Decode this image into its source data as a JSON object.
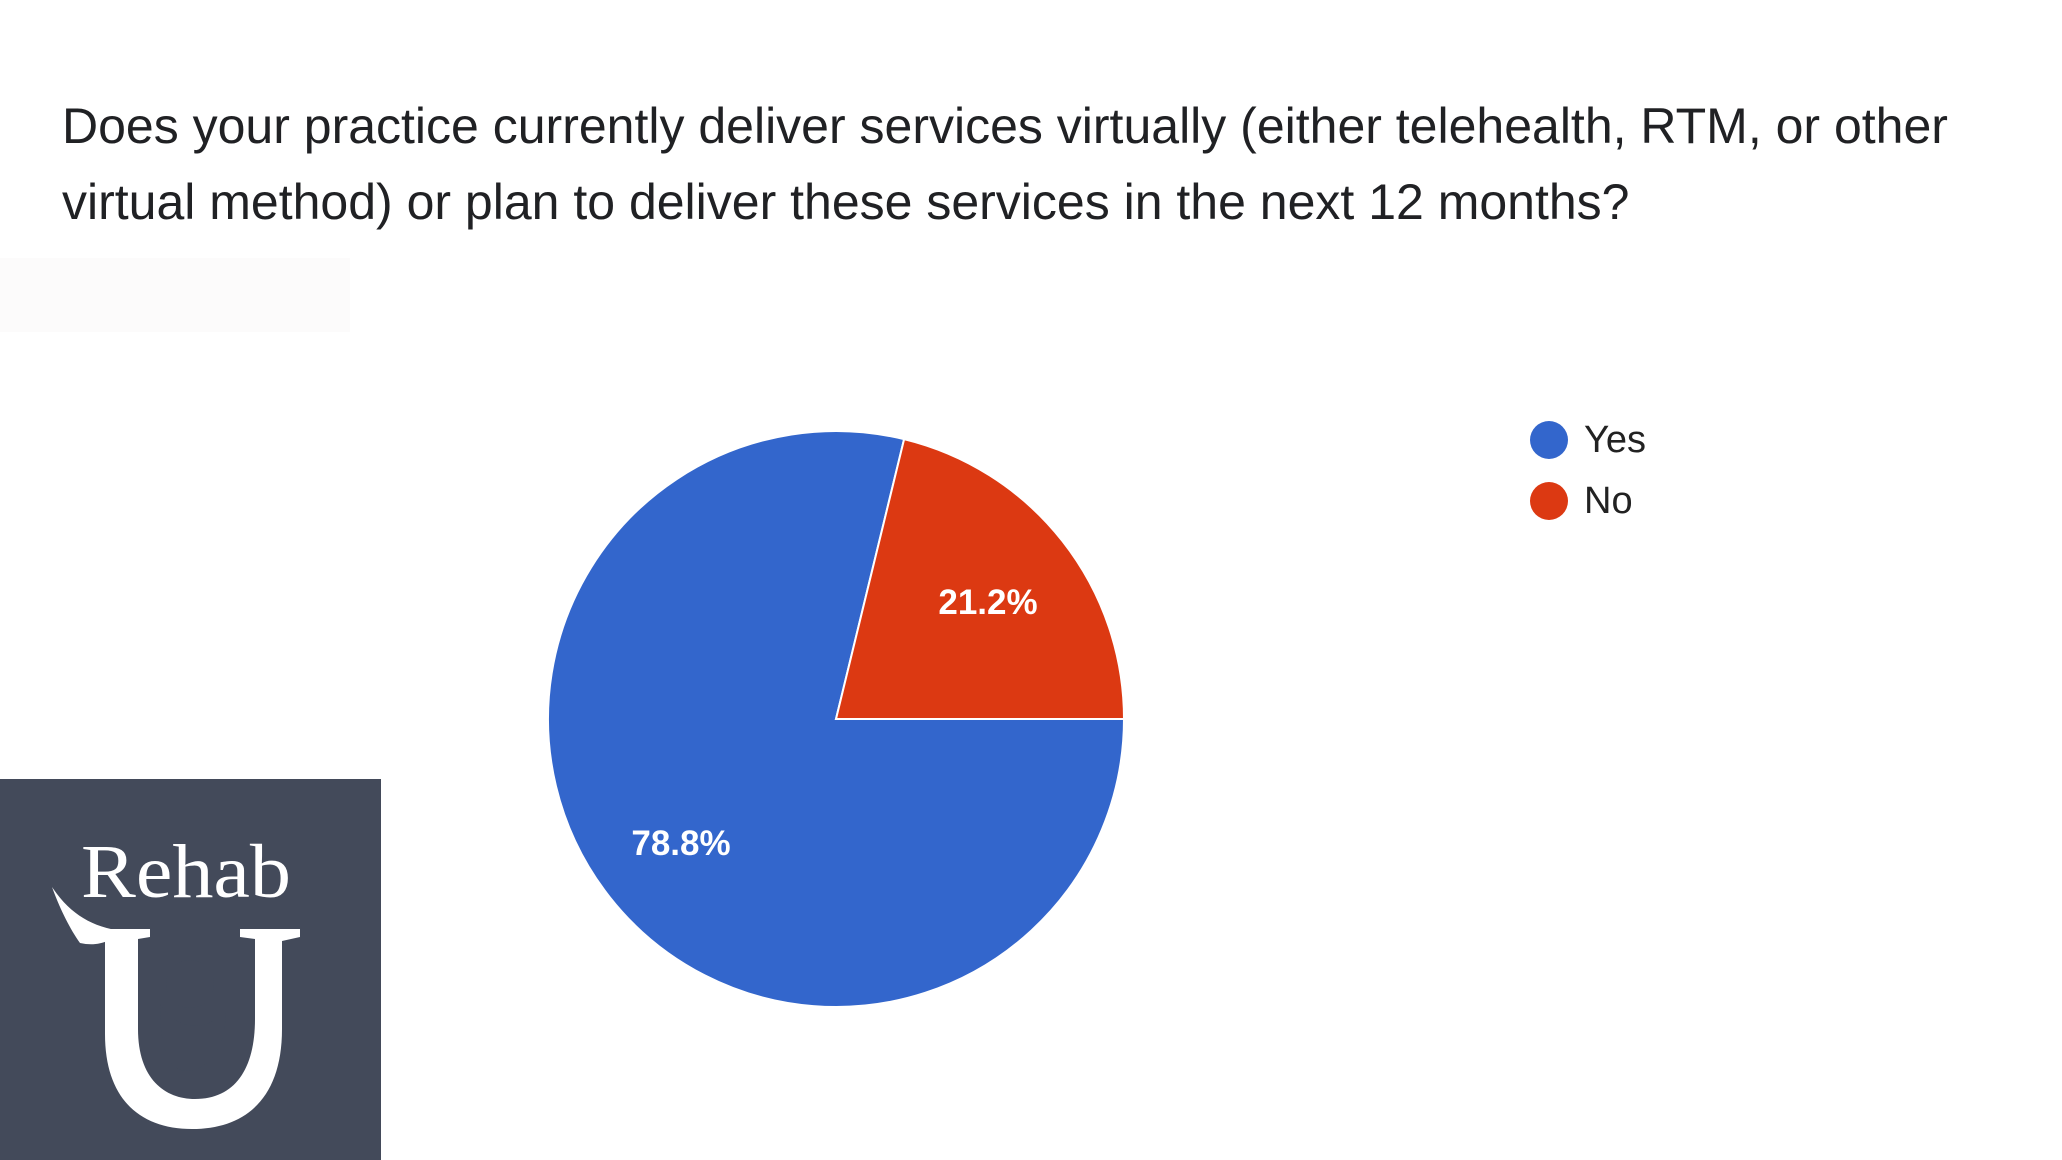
{
  "question": "Does your practice currently deliver services virtually (either telehealth, RTM, or other virtual method) or plan to deliver these services in the next 12 months?",
  "logo_text": "Rehab",
  "chart_data": {
    "type": "pie",
    "title": "Does your practice currently deliver services virtually (either telehealth, RTM, or other virtual method) or plan to deliver these services in the next 12 months?",
    "categories": [
      "Yes",
      "No"
    ],
    "values": [
      78.8,
      21.2
    ],
    "data_labels": [
      "78.8%",
      "21.2%"
    ],
    "colors": [
      "#3366cc",
      "#dc3912"
    ],
    "legend": "right"
  }
}
